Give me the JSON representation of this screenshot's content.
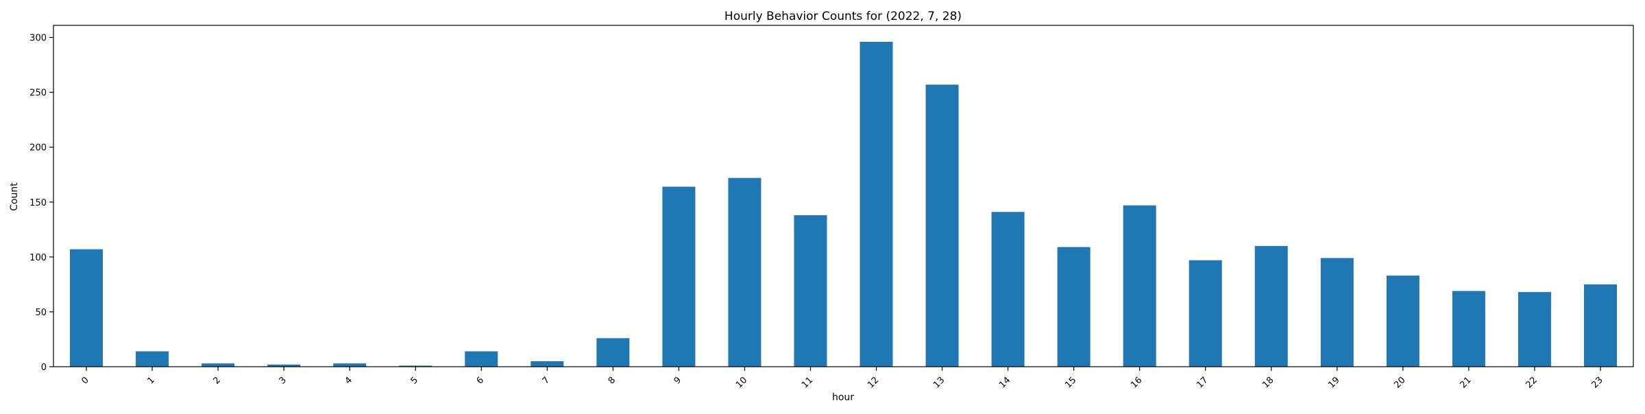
{
  "chart_data": {
    "type": "bar",
    "title": "Hourly Behavior Counts for (2022, 7, 28)",
    "xlabel": "hour",
    "ylabel": "Count",
    "categories": [
      "0",
      "1",
      "2",
      "3",
      "4",
      "5",
      "6",
      "7",
      "8",
      "9",
      "10",
      "11",
      "12",
      "13",
      "14",
      "15",
      "16",
      "17",
      "18",
      "19",
      "20",
      "21",
      "22",
      "23"
    ],
    "values": [
      107,
      14,
      3,
      2,
      3,
      1,
      14,
      5,
      26,
      164,
      172,
      138,
      296,
      257,
      141,
      109,
      147,
      97,
      110,
      99,
      83,
      69,
      68,
      75
    ],
    "ylim": [
      0,
      311
    ],
    "yticks": [
      0,
      50,
      100,
      150,
      200,
      250,
      300
    ],
    "ytick_labels": [
      "0",
      "50",
      "100",
      "150",
      "200",
      "250",
      "300"
    ],
    "grid": false,
    "legend": "none",
    "bar_color": "#1f77b4",
    "xtick_rotation": "45"
  }
}
